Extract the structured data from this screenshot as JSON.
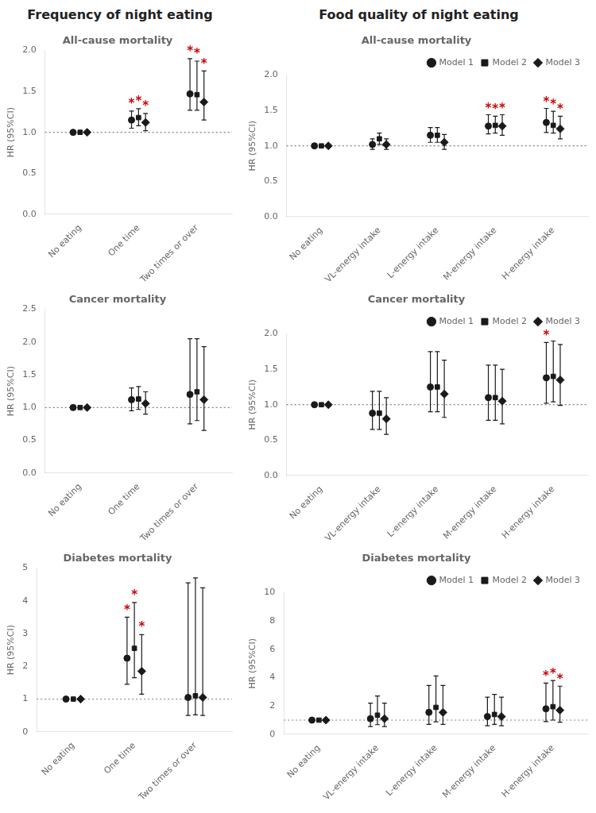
{
  "column_titles": [
    "Frequency of night eating",
    "Food quality of night eating"
  ],
  "chart_data": [
    {
      "type": "scatter",
      "title": "All-cause mortality",
      "ylabel": "HR (95%CI)",
      "categories": [
        "No eating",
        "One time",
        "Two times or over"
      ],
      "series": [
        {
          "name": "Model 1",
          "marker": "circle",
          "color": "#1a1a1a",
          "values": [
            1.0,
            1.15,
            1.47
          ],
          "ci_lower": [
            1.0,
            1.05,
            1.27
          ],
          "ci_upper": [
            1.0,
            1.26,
            1.9
          ]
        },
        {
          "name": "Model 2",
          "marker": "square",
          "color": "#1a1a1a",
          "values": [
            1.0,
            1.18,
            1.46
          ],
          "ci_lower": [
            1.0,
            1.08,
            1.27
          ],
          "ci_upper": [
            1.0,
            1.29,
            1.87
          ]
        },
        {
          "name": "Model 3",
          "marker": "diamond",
          "color": "#1a1a1a",
          "values": [
            1.0,
            1.12,
            1.37
          ],
          "ci_lower": [
            1.0,
            1.02,
            1.15
          ],
          "ci_upper": [
            1.0,
            1.23,
            1.75
          ]
        }
      ],
      "reference_line": 1.0,
      "annotations": [
        {
          "text": "*",
          "series": "Model 1",
          "category": "One time",
          "color": "#cc0000"
        },
        {
          "text": "*",
          "series": "Model 1",
          "category": "Two times or over",
          "color": "#cc0000"
        },
        {
          "text": "*",
          "series": "Model 2",
          "category": "One time",
          "color": "#cc0000"
        },
        {
          "text": "*",
          "series": "Model 2",
          "category": "Two times or over",
          "color": "#cc0000"
        },
        {
          "text": "*",
          "series": "Model 3",
          "category": "One time",
          "color": "#cc0000"
        },
        {
          "text": "*",
          "series": "Model 3",
          "category": "Two times or over",
          "color": "#cc0000"
        }
      ],
      "ylim": [
        0.0,
        2.0
      ],
      "yticks": [
        {
          "value": 0.0,
          "label": "0.0"
        },
        0.5,
        {
          "value": 1.0,
          "label": "1.0"
        },
        1.5,
        {
          "value": 2.0,
          "label": "2.0"
        }
      ],
      "grid": false
    },
    {
      "type": "scatter",
      "title": "All-cause mortality",
      "ylabel": "HR (95%CI)",
      "categories": [
        "No eating",
        "VL-energy intake",
        "L-energy intake",
        "M-energy intake",
        "H-energy intake"
      ],
      "series": [
        {
          "name": "Model 1",
          "marker": "circle",
          "color": "#1a1a1a",
          "values": [
            1.0,
            1.02,
            1.15,
            1.28,
            1.33
          ],
          "ci_lower": [
            1.0,
            0.95,
            1.05,
            1.17,
            1.19
          ],
          "ci_upper": [
            1.0,
            1.1,
            1.26,
            1.44,
            1.53
          ]
        },
        {
          "name": "Model 2",
          "marker": "square",
          "color": "#1a1a1a",
          "values": [
            1.0,
            1.1,
            1.15,
            1.29,
            1.29
          ],
          "ci_lower": [
            1.0,
            1.02,
            1.05,
            1.18,
            1.18
          ],
          "ci_upper": [
            1.0,
            1.18,
            1.26,
            1.42,
            1.49
          ]
        },
        {
          "name": "Model 3",
          "marker": "diamond",
          "color": "#1a1a1a",
          "values": [
            1.0,
            1.02,
            1.05,
            1.28,
            1.24
          ],
          "ci_lower": [
            1.0,
            0.95,
            0.95,
            1.15,
            1.1
          ],
          "ci_upper": [
            1.0,
            1.1,
            1.16,
            1.44,
            1.42
          ]
        }
      ],
      "reference_line": 1.0,
      "annotations": [
        {
          "text": "*",
          "series": "Model 1",
          "category": "M-energy intake",
          "color": "#cc0000"
        },
        {
          "text": "*",
          "series": "Model 1",
          "category": "H-energy intake",
          "color": "#cc0000"
        },
        {
          "text": "*",
          "series": "Model 2",
          "category": "M-energy intake",
          "color": "#cc0000"
        },
        {
          "text": "*",
          "series": "Model 2",
          "category": "H-energy intake",
          "color": "#cc0000"
        },
        {
          "text": "*",
          "series": "Model 3",
          "category": "M-energy intake",
          "color": "#cc0000"
        },
        {
          "text": "*",
          "series": "Model 3",
          "category": "H-energy intake",
          "color": "#cc0000"
        }
      ],
      "ylim": [
        0.0,
        2.0
      ],
      "yticks": [
        {
          "value": 0.0,
          "label": "0.0"
        },
        0.5,
        {
          "value": 1.0,
          "label": "1.0"
        },
        1.5,
        {
          "value": 2.0,
          "label": "2.0"
        }
      ],
      "grid": false,
      "legend": "upper right"
    },
    {
      "type": "scatter",
      "title": "Cancer mortality",
      "ylabel": "HR (95%CI)",
      "categories": [
        "No eating",
        "One time",
        "Two times or over"
      ],
      "series": [
        {
          "name": "Model 1",
          "marker": "circle",
          "color": "#1a1a1a",
          "values": [
            1.0,
            1.12,
            1.2
          ],
          "ci_lower": [
            1.0,
            0.95,
            0.75
          ],
          "ci_upper": [
            1.0,
            1.3,
            2.05
          ]
        },
        {
          "name": "Model 2",
          "marker": "square",
          "color": "#1a1a1a",
          "values": [
            1.0,
            1.13,
            1.24
          ],
          "ci_lower": [
            1.0,
            0.97,
            0.8
          ],
          "ci_upper": [
            1.0,
            1.32,
            2.05
          ]
        },
        {
          "name": "Model 3",
          "marker": "diamond",
          "color": "#1a1a1a",
          "values": [
            1.0,
            1.06,
            1.12
          ],
          "ci_lower": [
            1.0,
            0.9,
            0.65
          ],
          "ci_upper": [
            1.0,
            1.24,
            1.93
          ]
        }
      ],
      "reference_line": 1.0,
      "ylim": [
        0.0,
        2.5
      ],
      "yticks": [
        {
          "value": 0.0,
          "label": "0.0"
        },
        0.5,
        {
          "value": 1.0,
          "label": "1.0"
        },
        1.5,
        {
          "value": 2.0,
          "label": "2.0"
        },
        2.5
      ],
      "grid": false
    },
    {
      "type": "scatter",
      "title": "Cancer mortality",
      "ylabel": "HR (95%CI)",
      "categories": [
        "No eating",
        "VL-energy intake",
        "L-energy intake",
        "M-energy intake",
        "H-energy intake"
      ],
      "series": [
        {
          "name": "Model 1",
          "marker": "circle",
          "color": "#1a1a1a",
          "values": [
            1.0,
            0.88,
            1.25,
            1.1,
            1.38
          ],
          "ci_lower": [
            1.0,
            0.65,
            0.9,
            0.78,
            1.02
          ],
          "ci_upper": [
            1.0,
            1.19,
            1.75,
            1.56,
            1.88
          ]
        },
        {
          "name": "Model 2",
          "marker": "square",
          "color": "#1a1a1a",
          "values": [
            1.0,
            0.88,
            1.25,
            1.1,
            1.4
          ],
          "ci_lower": [
            1.0,
            0.65,
            0.9,
            0.78,
            1.04
          ],
          "ci_upper": [
            1.0,
            1.19,
            1.75,
            1.56,
            1.9
          ]
        },
        {
          "name": "Model 3",
          "marker": "diamond",
          "color": "#1a1a1a",
          "values": [
            1.0,
            0.8,
            1.15,
            1.05,
            1.35
          ],
          "ci_lower": [
            1.0,
            0.58,
            0.82,
            0.73,
            0.99
          ],
          "ci_upper": [
            1.0,
            1.1,
            1.63,
            1.5,
            1.85
          ]
        }
      ],
      "reference_line": 1.0,
      "annotations": [
        {
          "text": "*",
          "series": "Model 1",
          "category": "H-energy intake",
          "color": "#cc0000"
        }
      ],
      "ylim": [
        0.0,
        2.0
      ],
      "yticks": [
        {
          "value": 0.0,
          "label": "0.0"
        },
        0.5,
        {
          "value": 1.0,
          "label": "1.0"
        },
        1.5,
        {
          "value": 2.0,
          "label": "2.0"
        }
      ],
      "grid": false,
      "legend": "upper right"
    },
    {
      "type": "scatter",
      "title": "Diabetes mortality",
      "ylabel": "HR (95%CI)",
      "categories": [
        "No eating",
        "One time",
        "Two times or over"
      ],
      "series": [
        {
          "name": "Model 1",
          "marker": "circle",
          "color": "#1a1a1a",
          "values": [
            1.0,
            2.25,
            1.05
          ],
          "ci_lower": [
            1.0,
            1.45,
            0.5
          ],
          "ci_upper": [
            1.0,
            3.5,
            4.55
          ]
        },
        {
          "name": "Model 2",
          "marker": "square",
          "color": "#1a1a1a",
          "values": [
            1.0,
            2.55,
            1.1
          ],
          "ci_lower": [
            1.0,
            1.65,
            0.52
          ],
          "ci_upper": [
            1.0,
            3.95,
            4.7
          ]
        },
        {
          "name": "Model 3",
          "marker": "diamond",
          "color": "#1a1a1a",
          "values": [
            1.0,
            1.85,
            1.05
          ],
          "ci_lower": [
            1.0,
            1.15,
            0.5
          ],
          "ci_upper": [
            1.0,
            2.97,
            4.4
          ]
        }
      ],
      "reference_line": 1.0,
      "annotations": [
        {
          "text": "*",
          "series": "Model 1",
          "category": "One time",
          "color": "#cc0000"
        },
        {
          "text": "*",
          "series": "Model 2",
          "category": "One time",
          "color": "#cc0000"
        },
        {
          "text": "*",
          "series": "Model 3",
          "category": "One time",
          "color": "#cc0000"
        }
      ],
      "ylim": [
        0.0,
        5.0
      ],
      "yticks": [
        0,
        1,
        2,
        3,
        4,
        5
      ],
      "grid": false
    },
    {
      "type": "scatter",
      "title": "Diabetes mortality",
      "ylabel": "HR (95%CI)",
      "categories": [
        "No eating",
        "VL-energy intake",
        "L-energy intake",
        "M-energy intake",
        "H-energy intake"
      ],
      "series": [
        {
          "name": "Model 1",
          "marker": "circle",
          "color": "#1a1a1a",
          "values": [
            1.0,
            1.1,
            1.55,
            1.25,
            1.8
          ],
          "ci_lower": [
            1.0,
            0.55,
            0.7,
            0.6,
            0.9
          ],
          "ci_upper": [
            1.0,
            2.2,
            3.45,
            2.62,
            3.62
          ]
        },
        {
          "name": "Model 2",
          "marker": "square",
          "color": "#1a1a1a",
          "values": [
            1.0,
            1.35,
            1.9,
            1.4,
            1.95
          ],
          "ci_lower": [
            1.0,
            0.68,
            0.88,
            0.7,
            1.0
          ],
          "ci_upper": [
            1.0,
            2.7,
            4.12,
            2.82,
            3.8
          ]
        },
        {
          "name": "Model 3",
          "marker": "diamond",
          "color": "#1a1a1a",
          "values": [
            1.0,
            1.1,
            1.55,
            1.25,
            1.7
          ],
          "ci_lower": [
            1.0,
            0.55,
            0.7,
            0.6,
            0.85
          ],
          "ci_upper": [
            1.0,
            2.2,
            3.45,
            2.62,
            3.4
          ]
        }
      ],
      "reference_line": 1.0,
      "annotations": [
        {
          "text": "*",
          "series": "Model 1",
          "category": "H-energy intake",
          "color": "#cc0000"
        },
        {
          "text": "*",
          "series": "Model 2",
          "category": "H-energy intake",
          "color": "#cc0000"
        },
        {
          "text": "*",
          "series": "Model 3",
          "category": "H-energy intake",
          "color": "#cc0000"
        }
      ],
      "ylim": [
        0.0,
        10.0
      ],
      "yticks": [
        0,
        2,
        4,
        6,
        8,
        10
      ],
      "grid": false,
      "legend": "upper right"
    }
  ]
}
